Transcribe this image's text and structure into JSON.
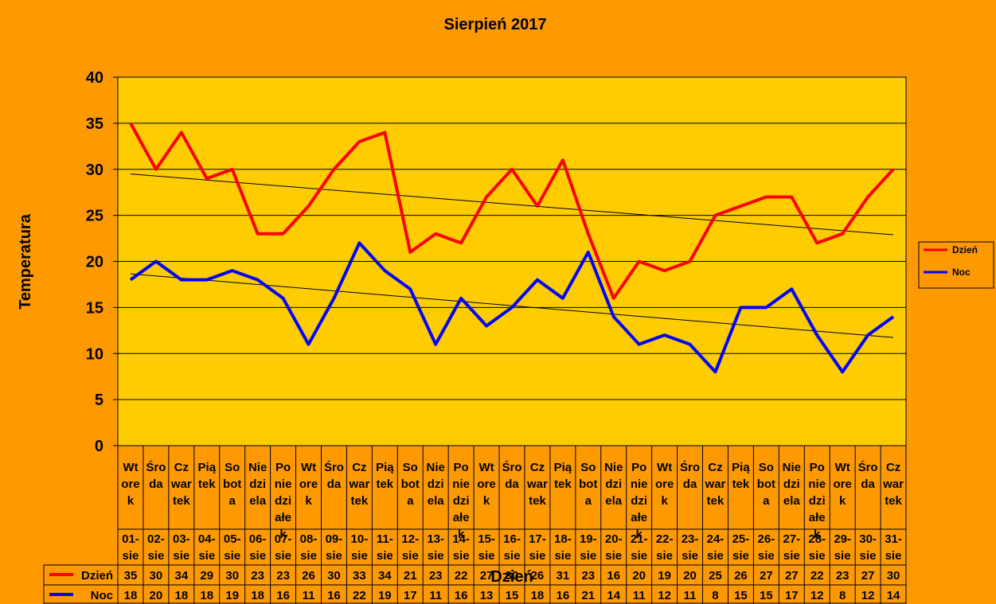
{
  "chart_data": {
    "type": "line",
    "title": "Sierpień 2017",
    "ylabel": "Temperatura",
    "xlabel": "Dzień",
    "ylim": [
      0,
      40
    ],
    "yticks": [
      0,
      5,
      10,
      15,
      20,
      25,
      30,
      35,
      40
    ],
    "grid": true,
    "legend_position": "right",
    "weekdays": [
      "Wtorek",
      "Środa",
      "Czwartek",
      "Piątek",
      "Sobota",
      "Niedziela",
      "Poniedziałek",
      "Wtorek",
      "Środa",
      "Czwartek",
      "Piątek",
      "Sobota",
      "Niedziela",
      "Poniedziałek",
      "Wtorek",
      "Środa",
      "Czwartek",
      "Piątek",
      "Sobota",
      "Niedziela",
      "Poniedziałek",
      "Wtorek",
      "Środa",
      "Czwartek",
      "Piątek",
      "Sobota",
      "Niedziela",
      "Poniedziałek",
      "Wtorek",
      "Środa",
      "Czwartek"
    ],
    "weekday_lines": [
      [
        "Wt",
        "ore",
        "k"
      ],
      [
        "Śro",
        "da"
      ],
      [
        "Cz",
        "war",
        "tek"
      ],
      [
        "Pią",
        "tek"
      ],
      [
        "So",
        "bot",
        "a"
      ],
      [
        "Nie",
        "dzi",
        "ela"
      ],
      [
        "Po",
        "nie",
        "dzi",
        "ałe",
        "k"
      ],
      [
        "Wt",
        "ore",
        "k"
      ],
      [
        "Śro",
        "da"
      ],
      [
        "Cz",
        "war",
        "tek"
      ],
      [
        "Pią",
        "tek"
      ],
      [
        "So",
        "bot",
        "a"
      ],
      [
        "Nie",
        "dzi",
        "ela"
      ],
      [
        "Po",
        "nie",
        "dzi",
        "ałe",
        "k"
      ],
      [
        "Wt",
        "ore",
        "k"
      ],
      [
        "Śro",
        "da"
      ],
      [
        "Cz",
        "war",
        "tek"
      ],
      [
        "Pią",
        "tek"
      ],
      [
        "So",
        "bot",
        "a"
      ],
      [
        "Nie",
        "dzi",
        "ela"
      ],
      [
        "Po",
        "nie",
        "dzi",
        "ałe",
        "k"
      ],
      [
        "Wt",
        "ore",
        "k"
      ],
      [
        "Śro",
        "da"
      ],
      [
        "Cz",
        "war",
        "tek"
      ],
      [
        "Pią",
        "tek"
      ],
      [
        "So",
        "bot",
        "a"
      ],
      [
        "Nie",
        "dzi",
        "ela"
      ],
      [
        "Po",
        "nie",
        "dzi",
        "ałe",
        "k"
      ],
      [
        "Wt",
        "ore",
        "k"
      ],
      [
        "Śro",
        "da"
      ],
      [
        "Cz",
        "war",
        "tek"
      ]
    ],
    "dates": [
      "01-sie",
      "02-sie",
      "03-sie",
      "04-sie",
      "05-sie",
      "06-sie",
      "07-sie",
      "08-sie",
      "09-sie",
      "10-sie",
      "11-sie",
      "12-sie",
      "13-sie",
      "14-sie",
      "15-sie",
      "16-sie",
      "17-sie",
      "18-sie",
      "19-sie",
      "20-sie",
      "21-sie",
      "22-sie",
      "23-sie",
      "24-sie",
      "25-sie",
      "26-sie",
      "27-sie",
      "28-sie",
      "29-sie",
      "30-sie",
      "31-sie"
    ],
    "series": [
      {
        "name": "Dzień",
        "color": "#FF0000",
        "values": [
          35,
          30,
          34,
          29,
          30,
          23,
          23,
          26,
          30,
          33,
          34,
          21,
          23,
          22,
          27,
          30,
          26,
          31,
          23,
          16,
          20,
          19,
          20,
          25,
          26,
          27,
          27,
          22,
          23,
          27,
          30
        ]
      },
      {
        "name": "Noc",
        "color": "#0000FF",
        "values": [
          18,
          20,
          18,
          18,
          19,
          18,
          16,
          11,
          16,
          22,
          19,
          17,
          11,
          16,
          13,
          15,
          18,
          16,
          21,
          14,
          11,
          12,
          11,
          8,
          15,
          15,
          17,
          12,
          8,
          12,
          14
        ]
      }
    ],
    "trendline_color": "#000000"
  }
}
